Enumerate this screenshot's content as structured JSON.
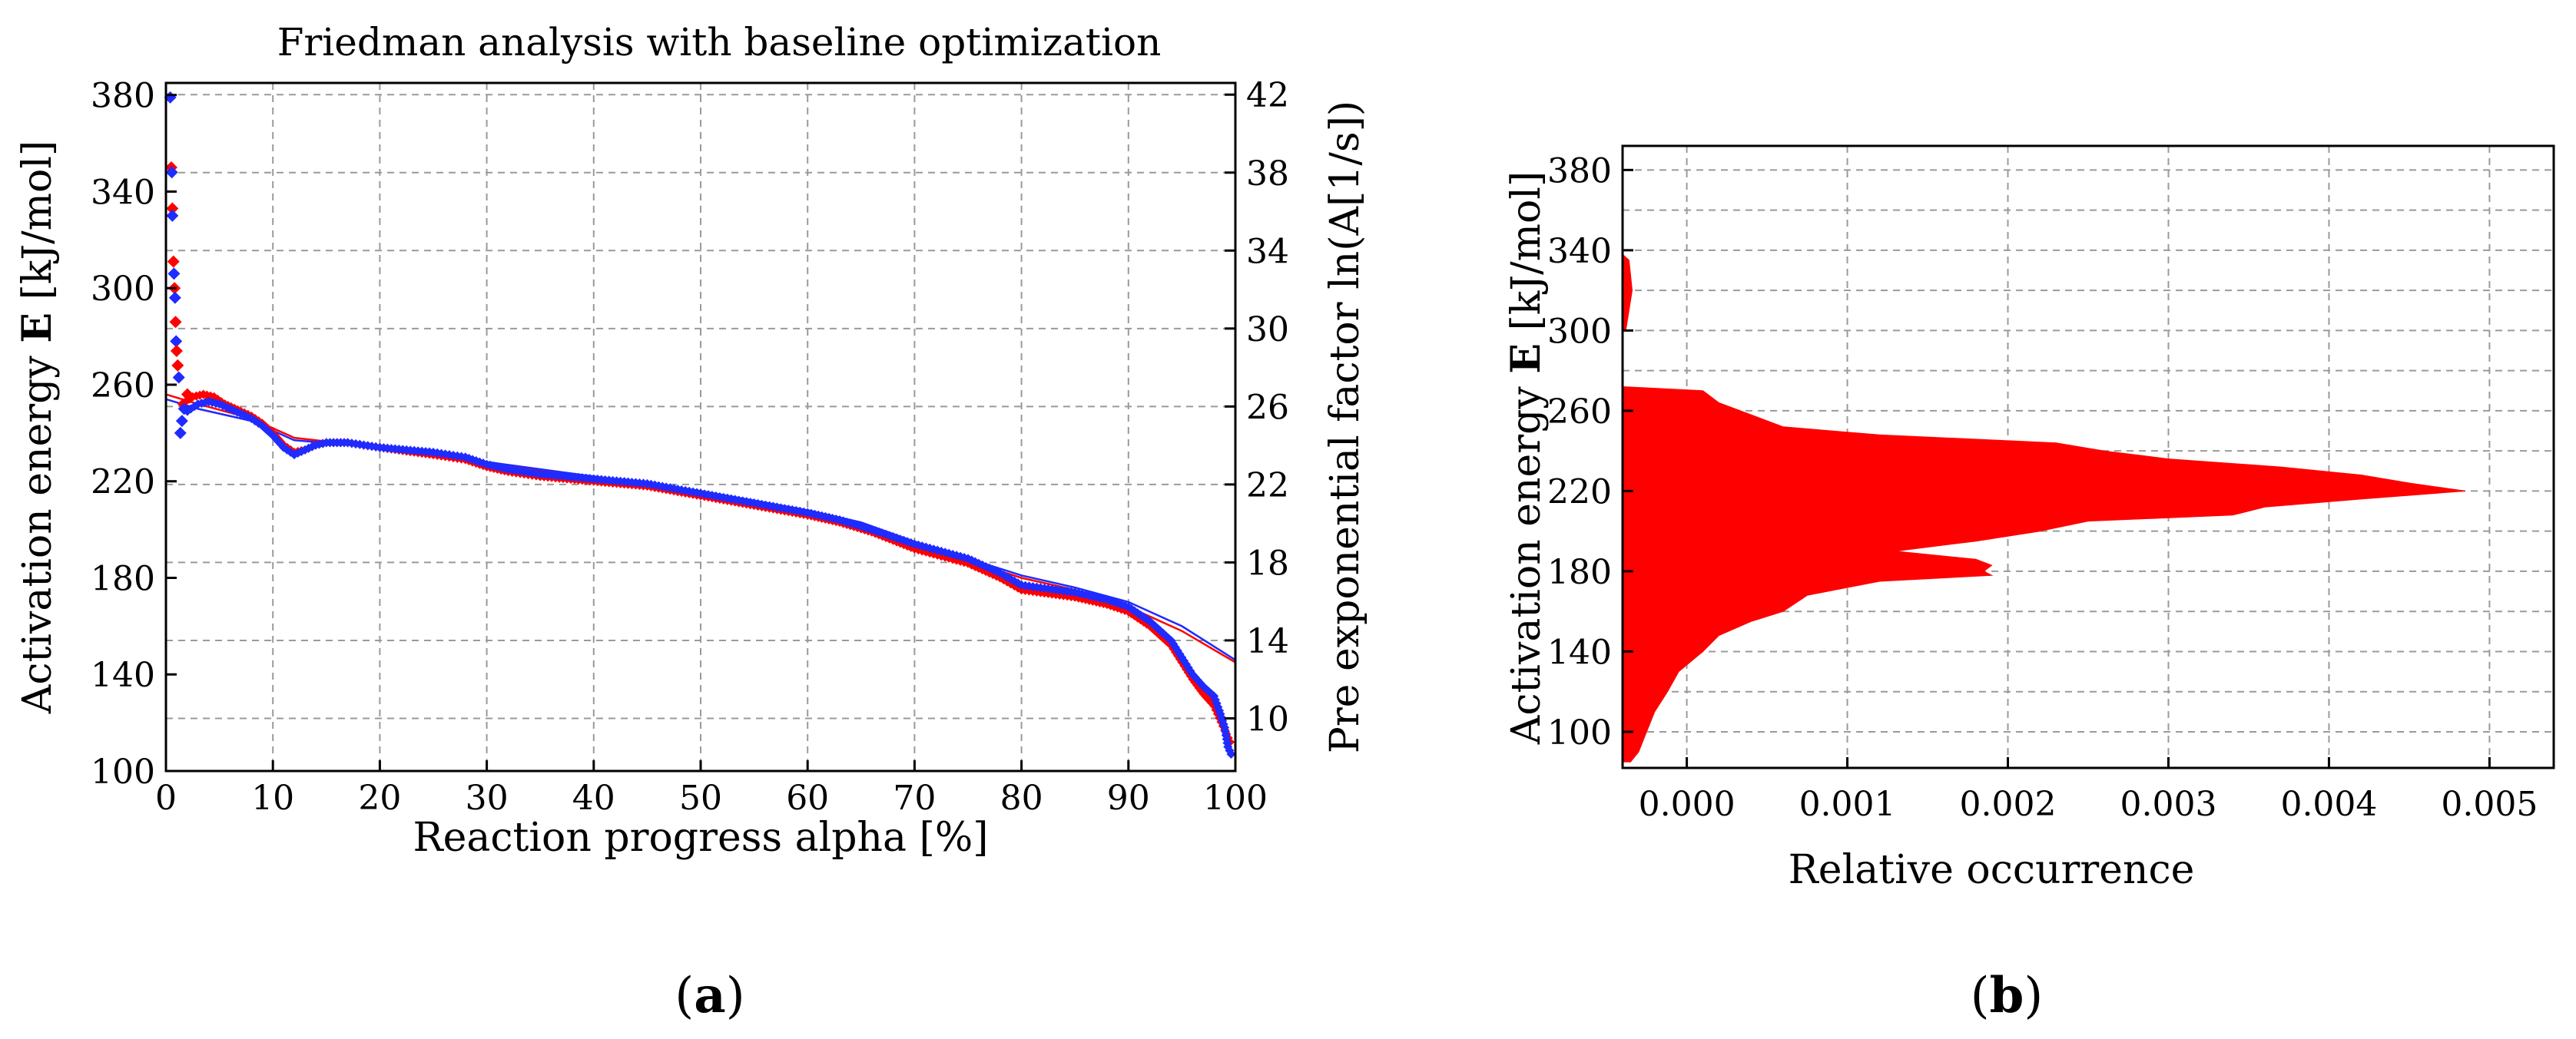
{
  "panels": {
    "a_label_open": "(",
    "a_label_letter": "a",
    "a_label_close": ")",
    "b_label_open": "(",
    "b_label_letter": "b",
    "b_label_close": ")"
  },
  "colors": {
    "red": "#ff0000",
    "blue": "#1f2bff",
    "grid": "#9a9a9a"
  },
  "chart_data": [
    {
      "id": "a",
      "type": "scatter",
      "title": "Friedman analysis with baseline optimization",
      "xlabel": "Reaction progress alpha [%]",
      "ylabel_prefix": "Activation energy ",
      "ylabel_bold": "E",
      "ylabel_suffix": " [kJ/mol]",
      "y2label": "Pre exponential factor ln(A[1/s])",
      "xlim": [
        0,
        100
      ],
      "ylim": [
        100,
        385
      ],
      "y2lim": [
        7.3,
        42.6
      ],
      "xticks": [
        0,
        10,
        20,
        30,
        40,
        50,
        60,
        70,
        80,
        90,
        100
      ],
      "yticks": [
        100,
        140,
        180,
        220,
        260,
        300,
        340,
        380
      ],
      "y2ticks": [
        10,
        14,
        18,
        22,
        26,
        30,
        34,
        38,
        42
      ],
      "outliers": [
        {
          "x": 0.4,
          "y": 379,
          "series": "blue"
        },
        {
          "x": 0.5,
          "y": 350,
          "series": "red"
        },
        {
          "x": 0.55,
          "y": 348,
          "series": "blue"
        },
        {
          "x": 0.6,
          "y": 333,
          "series": "red"
        },
        {
          "x": 0.6,
          "y": 330,
          "series": "blue"
        },
        {
          "x": 0.7,
          "y": 311,
          "series": "red"
        },
        {
          "x": 0.75,
          "y": 306,
          "series": "blue"
        },
        {
          "x": 0.8,
          "y": 300,
          "series": "red"
        },
        {
          "x": 0.85,
          "y": 296,
          "series": "blue"
        },
        {
          "x": 0.9,
          "y": 286,
          "series": "red"
        },
        {
          "x": 0.95,
          "y": 278,
          "series": "blue"
        },
        {
          "x": 1.0,
          "y": 274,
          "series": "red"
        },
        {
          "x": 1.1,
          "y": 268,
          "series": "red"
        },
        {
          "x": 1.2,
          "y": 263,
          "series": "blue"
        },
        {
          "x": 1.35,
          "y": 240,
          "series": "blue"
        },
        {
          "x": 1.5,
          "y": 245,
          "series": "blue"
        },
        {
          "x": 1.7,
          "y": 250,
          "series": "blue"
        },
        {
          "x": 2.0,
          "y": 256,
          "series": "red"
        }
      ],
      "series": [
        {
          "name": "red",
          "points": [
            [
              1.5,
              252
            ],
            [
              2.5,
              255
            ],
            [
              3.5,
              256
            ],
            [
              4.5,
              255
            ],
            [
              5.5,
              252
            ],
            [
              7,
              249
            ],
            [
              8,
              247
            ],
            [
              9,
              244
            ],
            [
              10,
              240
            ],
            [
              11,
              235
            ],
            [
              12,
              232
            ],
            [
              13,
              233
            ],
            [
              14,
              235
            ],
            [
              15,
              236
            ],
            [
              17,
              236
            ],
            [
              20,
              234
            ],
            [
              25,
              231
            ],
            [
              28,
              229
            ],
            [
              30,
              226
            ],
            [
              32,
              224
            ],
            [
              35,
              222
            ],
            [
              40,
              220
            ],
            [
              45,
              218
            ],
            [
              50,
              214
            ],
            [
              55,
              210
            ],
            [
              60,
              206
            ],
            [
              63,
              203
            ],
            [
              66,
              199
            ],
            [
              70,
              192
            ],
            [
              75,
              186
            ],
            [
              78,
              180
            ],
            [
              80,
              175
            ],
            [
              85,
              172
            ],
            [
              88,
              169
            ],
            [
              90,
              166
            ],
            [
              92,
              160
            ],
            [
              94,
              152
            ],
            [
              95,
              145
            ],
            [
              96,
              138
            ],
            [
              97,
              132
            ],
            [
              98,
              127
            ],
            [
              98.5,
              122
            ],
            [
              99,
              117
            ],
            [
              99.5,
              112
            ]
          ]
        },
        {
          "name": "blue",
          "points": [
            [
              2,
              249
            ],
            [
              3,
              252
            ],
            [
              4,
              253
            ],
            [
              5,
              252
            ],
            [
              6,
              250
            ],
            [
              7,
              248
            ],
            [
              8,
              246
            ],
            [
              9,
              243
            ],
            [
              10,
              239
            ],
            [
              11,
              234
            ],
            [
              12,
              231
            ],
            [
              13,
              233
            ],
            [
              14,
              235
            ],
            [
              15,
              236
            ],
            [
              17,
              236
            ],
            [
              20,
              234
            ],
            [
              25,
              232
            ],
            [
              28,
              230
            ],
            [
              30,
              227
            ],
            [
              32,
              225
            ],
            [
              35,
              223
            ],
            [
              40,
              221
            ],
            [
              45,
              219
            ],
            [
              50,
              215
            ],
            [
              55,
              211
            ],
            [
              60,
              207
            ],
            [
              63,
              204
            ],
            [
              66,
              200
            ],
            [
              70,
              194
            ],
            [
              75,
              188
            ],
            [
              78,
              182
            ],
            [
              80,
              177
            ],
            [
              85,
              174
            ],
            [
              88,
              171
            ],
            [
              90,
              168
            ],
            [
              92,
              162
            ],
            [
              94,
              154
            ],
            [
              95,
              147
            ],
            [
              96,
              140
            ],
            [
              97,
              135
            ],
            [
              98,
              131
            ],
            [
              98.5,
              125
            ],
            [
              99,
              118
            ],
            [
              99.3,
              110
            ],
            [
              99.6,
              107
            ]
          ]
        }
      ],
      "fit_lines": [
        {
          "name": "red_fit",
          "color": "red",
          "points": [
            [
              0,
              256
            ],
            [
              3,
              252
            ],
            [
              8,
              246
            ],
            [
              12,
              238
            ],
            [
              20,
              234
            ],
            [
              30,
              228
            ],
            [
              40,
              221
            ],
            [
              50,
              215
            ],
            [
              60,
              207
            ],
            [
              65,
              202
            ],
            [
              70,
              194
            ],
            [
              80,
              180
            ],
            [
              85,
              175
            ],
            [
              90,
              168
            ],
            [
              95,
              158
            ],
            [
              100,
              145
            ]
          ]
        },
        {
          "name": "blue_fit",
          "color": "blue",
          "points": [
            [
              0,
              254
            ],
            [
              3,
              250
            ],
            [
              8,
              245
            ],
            [
              12,
              237
            ],
            [
              20,
              234
            ],
            [
              30,
              228
            ],
            [
              40,
              222
            ],
            [
              50,
              216
            ],
            [
              60,
              208
            ],
            [
              65,
              203
            ],
            [
              70,
              195
            ],
            [
              80,
              181
            ],
            [
              85,
              176
            ],
            [
              90,
              170
            ],
            [
              95,
              160
            ],
            [
              100,
              146
            ]
          ]
        }
      ]
    },
    {
      "id": "b",
      "type": "area",
      "title": "",
      "xlabel": "Relative occurrence",
      "ylabel_prefix": "Activation energy ",
      "ylabel_bold": "E",
      "ylabel_suffix": " [kJ/mol]",
      "xlim": [
        -0.0004,
        0.0054
      ],
      "ylim": [
        82,
        392
      ],
      "xticks": [
        0.0,
        0.001,
        0.002,
        0.003,
        0.004,
        0.005
      ],
      "xticklabels": [
        "0.000",
        "0.001",
        "0.002",
        "0.003",
        "0.004",
        "0.005"
      ],
      "yticks": [
        100,
        140,
        180,
        220,
        260,
        300,
        340,
        380
      ],
      "color": "red",
      "distribution": [
        {
          "E": 85,
          "x": -0.00035
        },
        {
          "E": 90,
          "x": -0.0003
        },
        {
          "E": 100,
          "x": -0.00025
        },
        {
          "E": 110,
          "x": -0.0002
        },
        {
          "E": 120,
          "x": -0.00012
        },
        {
          "E": 130,
          "x": -5e-05
        },
        {
          "E": 140,
          "x": 0.0001
        },
        {
          "E": 148,
          "x": 0.0002
        },
        {
          "E": 155,
          "x": 0.0004
        },
        {
          "E": 160,
          "x": 0.0006
        },
        {
          "E": 168,
          "x": 0.00075
        },
        {
          "E": 175,
          "x": 0.0012
        },
        {
          "E": 178,
          "x": 0.0019
        },
        {
          "E": 180,
          "x": 0.00185
        },
        {
          "E": 183,
          "x": 0.0019
        },
        {
          "E": 186,
          "x": 0.0018
        },
        {
          "E": 190,
          "x": 0.0013
        },
        {
          "E": 195,
          "x": 0.0018
        },
        {
          "E": 200,
          "x": 0.0022
        },
        {
          "E": 205,
          "x": 0.0025
        },
        {
          "E": 208,
          "x": 0.0034
        },
        {
          "E": 212,
          "x": 0.0036
        },
        {
          "E": 216,
          "x": 0.0042
        },
        {
          "E": 220,
          "x": 0.00485
        },
        {
          "E": 224,
          "x": 0.0045
        },
        {
          "E": 228,
          "x": 0.0042
        },
        {
          "E": 232,
          "x": 0.0037
        },
        {
          "E": 236,
          "x": 0.003
        },
        {
          "E": 240,
          "x": 0.0026
        },
        {
          "E": 244,
          "x": 0.0023
        },
        {
          "E": 248,
          "x": 0.0012
        },
        {
          "E": 252,
          "x": 0.0006
        },
        {
          "E": 258,
          "x": 0.0004
        },
        {
          "E": 264,
          "x": 0.0002
        },
        {
          "E": 270,
          "x": 0.0001
        },
        {
          "E": 272,
          "x": -0.0004
        }
      ],
      "tail": [
        {
          "E": 300,
          "x": -0.00038
        },
        {
          "E": 320,
          "x": -0.00034
        },
        {
          "E": 335,
          "x": -0.00036
        },
        {
          "E": 338,
          "x": -0.0004
        }
      ]
    }
  ]
}
